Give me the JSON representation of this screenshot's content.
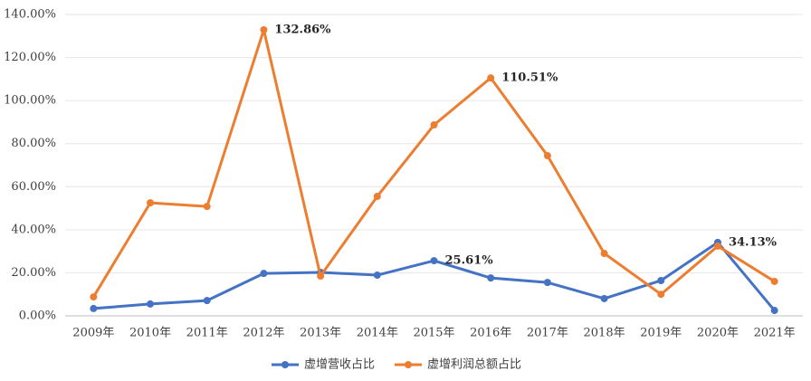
{
  "chart_data": {
    "type": "line",
    "categories": [
      "2009年",
      "2010年",
      "2011年",
      "2012年",
      "2013年",
      "2014年",
      "2015年",
      "2016年",
      "2017年",
      "2018年",
      "2019年",
      "2020年",
      "2021年"
    ],
    "series": [
      {
        "name": "虚增营收占比",
        "color": "#4472c4",
        "values": [
          3.4,
          5.5,
          7.1,
          19.7,
          20.2,
          18.9,
          25.61,
          17.6,
          15.5,
          8.0,
          16.4,
          34.13,
          2.5
        ],
        "value_labels": [
          null,
          null,
          null,
          null,
          null,
          null,
          "25.61%",
          null,
          null,
          null,
          null,
          "34.13%",
          null
        ]
      },
      {
        "name": "虚增利润总额占比",
        "color": "#ed7d31",
        "values": [
          8.8,
          52.5,
          50.8,
          132.86,
          18.5,
          55.5,
          88.7,
          110.51,
          74.4,
          29.0,
          10.0,
          32.4,
          16.0
        ],
        "value_labels": [
          null,
          null,
          null,
          "132.86%",
          null,
          null,
          null,
          "110.51%",
          null,
          null,
          null,
          null,
          null
        ]
      }
    ],
    "ylim": [
      0,
      140
    ],
    "yticks": [
      {
        "value": 0,
        "label": "0.00%"
      },
      {
        "value": 20,
        "label": "20.00%"
      },
      {
        "value": 40,
        "label": "40.00%"
      },
      {
        "value": 60,
        "label": "60.00%"
      },
      {
        "value": 80,
        "label": "80.00%"
      },
      {
        "value": 100,
        "label": "100.00%"
      },
      {
        "value": 120,
        "label": "120.00%"
      },
      {
        "value": 140,
        "label": "140.00%"
      }
    ],
    "grid": true
  }
}
